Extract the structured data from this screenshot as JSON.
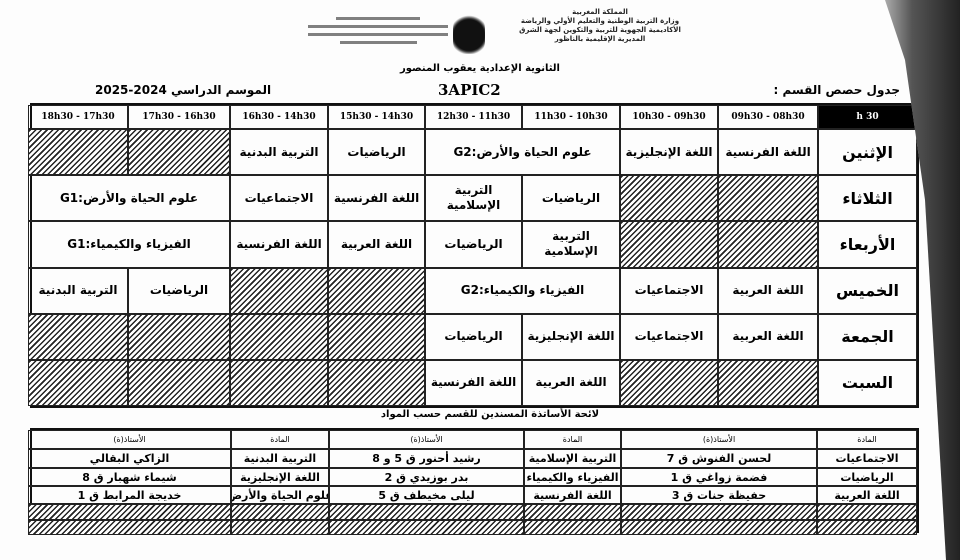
{
  "header": {
    "ministry_lines": [
      "المملكة المغربية",
      "وزارة التربية الوطنية والتعليم الأولي والرياضة",
      "الأكاديمية الجهوية للتربية والتكوين لجهة الشرق",
      "المديرية الإقليمية بالناظور"
    ],
    "school": "الثانوية الإعدادية يعقوب المنصور",
    "timetable_title": "جدول حصص القسم :",
    "class": "3APIC2",
    "school_year": "الموسم الدراسي 2024-2025"
  },
  "timetable": {
    "corner": "30 h",
    "slots": [
      "09h30 - 08h30",
      "10h30 - 09h30",
      "11h30 - 10h30",
      "12h30 - 11h30",
      "15h30 - 14h30",
      "16h30 - 14h30",
      "17h30 - 16h30",
      "18h30 - 17h30"
    ],
    "days": [
      {
        "day": "الإثنين",
        "cells": [
          {
            "t": "اللغة الفرنسية"
          },
          {
            "t": "اللغة الإنجليزية"
          },
          {
            "t": "علوم الحياة والأرض:G2",
            "span": 2
          },
          {
            "t": "الرياضيات"
          },
          {
            "t": "التربية البدنية"
          },
          null,
          null
        ]
      },
      {
        "day": "الثلاثاء",
        "cells": [
          null,
          null,
          {
            "t": "الرياضيات"
          },
          {
            "t": "التربية الإسلامية"
          },
          {
            "t": "اللغة الفرنسية"
          },
          {
            "t": "الاجتماعيات"
          },
          {
            "t": "علوم الحياة والأرض:G1",
            "span": 2
          }
        ]
      },
      {
        "day": "الأربعاء",
        "cells": [
          null,
          null,
          {
            "t": "التربية الإسلامية"
          },
          {
            "t": "الرياضيات"
          },
          {
            "t": "اللغة العربية"
          },
          {
            "t": "اللغة الفرنسية"
          },
          {
            "t": "الفيزياء والكيمياء:G1",
            "span": 2
          }
        ]
      },
      {
        "day": "الخميس",
        "cells": [
          {
            "t": "اللغة العربية"
          },
          {
            "t": "الاجتماعيات"
          },
          {
            "t": "الفيزياء والكيمياء:G2",
            "span": 2
          },
          null,
          null,
          {
            "t": "الرياضيات"
          },
          {
            "t": "التربية البدنية"
          }
        ]
      },
      {
        "day": "الجمعة",
        "cells": [
          {
            "t": "اللغة العربية"
          },
          {
            "t": "الاجتماعيات"
          },
          {
            "t": "اللغة الإنجليزية"
          },
          {
            "t": "الرياضيات"
          },
          null,
          null,
          null,
          null
        ]
      },
      {
        "day": "السبت",
        "cells": [
          null,
          null,
          {
            "t": "اللغة العربية"
          },
          {
            "t": "اللغة الفرنسية"
          },
          null,
          null,
          null,
          null
        ]
      }
    ]
  },
  "teachers": {
    "title": "لائحة الأساتذة المسندين للقسم حسب المواد",
    "subject_header": "المادة",
    "teacher_header": "الأستاذ(ة)",
    "rows": [
      [
        "الاجتماعيات",
        "لحسن الفنوش ق 7",
        "التربية الإسلامية",
        "رشيد أحنور ق 5 و 8",
        "التربية البدنية",
        "الزاكي البقالي"
      ],
      [
        "الرياضيات",
        "فضمة زواغي ق 1",
        "الفيزياء والكيمياء",
        "بدر بوزيدي ق 2",
        "اللغة الإنجليزية",
        "شيماء شهبار ق 8"
      ],
      [
        "اللغة العربية",
        "حفيظة جنات ق 3",
        "اللغة الفرنسية",
        "ليلى مخيطف ق 5",
        "علوم الحياة والأرض",
        "خديجة المرابط ق 1"
      ]
    ]
  }
}
